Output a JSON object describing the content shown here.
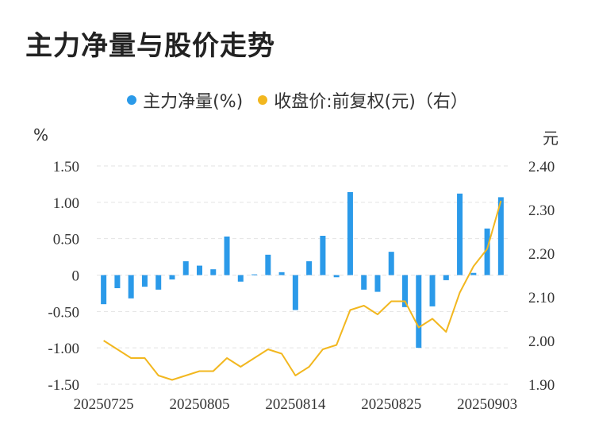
{
  "title": "主力净量与股价走势",
  "legend": {
    "series1": "主力净量(%)",
    "series2": "收盘价:前复权(元)（右）"
  },
  "units": {
    "left": "%",
    "right": "元"
  },
  "colors": {
    "bar": "#2b9ae9",
    "line": "#f2b71f",
    "grid": "#e3e3e3"
  },
  "chart_data": {
    "type": "bar+line",
    "title": "主力净量与股价走势",
    "x_tick_labels": [
      "20250725",
      "20250805",
      "20250814",
      "20250825",
      "20250903"
    ],
    "x_tick_indices": [
      0,
      7,
      14,
      21,
      28
    ],
    "y_left": {
      "label": "%",
      "range": [
        -1.5,
        1.5
      ],
      "ticks": [
        1.5,
        1.0,
        0.5,
        0,
        -0.5,
        -1.0,
        -1.5
      ],
      "tick_labels": [
        "1.50",
        "1.00",
        "0.50",
        "0",
        "-0.50",
        "-1.00",
        "-1.50"
      ]
    },
    "y_right": {
      "label": "元",
      "range": [
        1.9,
        2.4
      ],
      "ticks": [
        2.4,
        2.3,
        2.2,
        2.1,
        2.0,
        1.9
      ],
      "tick_labels": [
        "2.40",
        "2.30",
        "2.20",
        "2.10",
        "2.00",
        "1.90"
      ]
    },
    "series": [
      {
        "name": "主力净量(%)",
        "type": "bar",
        "axis": "left",
        "values": [
          -0.4,
          -0.18,
          -0.32,
          -0.16,
          -0.2,
          -0.06,
          0.19,
          0.13,
          0.08,
          0.53,
          -0.09,
          0.01,
          0.28,
          0.04,
          -0.48,
          0.19,
          0.54,
          -0.03,
          1.14,
          -0.2,
          -0.23,
          0.32,
          -0.44,
          -1.0,
          -0.43,
          -0.07,
          1.12,
          0.03,
          0.64,
          1.07
        ]
      },
      {
        "name": "收盘价:前复权(元)",
        "type": "line",
        "axis": "right",
        "values": [
          2.0,
          1.98,
          1.96,
          1.96,
          1.92,
          1.91,
          1.92,
          1.93,
          1.93,
          1.96,
          1.94,
          1.96,
          1.98,
          1.97,
          1.92,
          1.94,
          1.98,
          1.99,
          2.07,
          2.08,
          2.06,
          2.09,
          2.09,
          2.03,
          2.05,
          2.02,
          2.11,
          2.17,
          2.21,
          2.32
        ]
      }
    ]
  }
}
